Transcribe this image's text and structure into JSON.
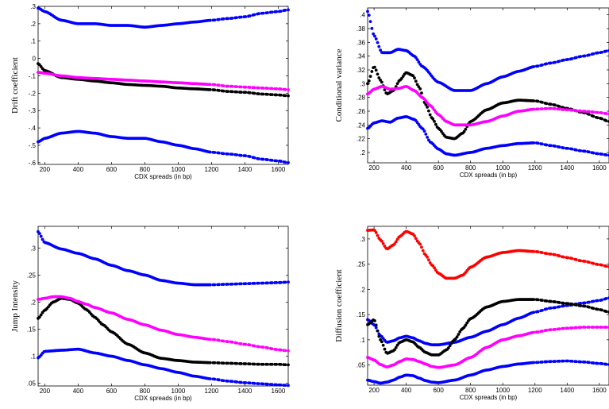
{
  "chart_data": [
    {
      "type": "scatter",
      "xlabel": "CDX spreads (in bp)",
      "ylabel": "Drift coefficient",
      "xlim": [
        160,
        1660
      ],
      "ylim": [
        -0.61,
        0.3
      ],
      "xticks": [
        200,
        400,
        600,
        800,
        1000,
        1200,
        1400,
        1600
      ],
      "yticks": [
        0.3,
        0.2,
        0.1,
        0,
        -0.1,
        -0.2,
        -0.3,
        -0.4,
        -0.5,
        -0.6
      ],
      "series": [
        {
          "color": "#0000ff",
          "x": [
            160,
            200,
            300,
            400,
            500,
            600,
            700,
            800,
            900,
            1000,
            1100,
            1200,
            1300,
            1400,
            1500,
            1600,
            1660
          ],
          "y": [
            0.29,
            0.27,
            0.22,
            0.2,
            0.2,
            0.19,
            0.19,
            0.18,
            0.19,
            0.2,
            0.21,
            0.22,
            0.23,
            0.24,
            0.26,
            0.27,
            0.28
          ]
        },
        {
          "color": "#000000",
          "x": [
            160,
            200,
            300,
            400,
            500,
            600,
            700,
            800,
            900,
            1000,
            1100,
            1200,
            1300,
            1400,
            1500,
            1600,
            1660
          ],
          "y": [
            -0.03,
            -0.07,
            -0.11,
            -0.12,
            -0.13,
            -0.14,
            -0.15,
            -0.155,
            -0.16,
            -0.17,
            -0.175,
            -0.18,
            -0.19,
            -0.195,
            -0.205,
            -0.21,
            -0.215
          ]
        },
        {
          "color": "#ff00ff",
          "x": [
            160,
            200,
            300,
            400,
            500,
            600,
            700,
            800,
            900,
            1000,
            1100,
            1200,
            1300,
            1400,
            1500,
            1600,
            1660
          ],
          "y": [
            -0.08,
            -0.085,
            -0.1,
            -0.11,
            -0.115,
            -0.12,
            -0.125,
            -0.13,
            -0.135,
            -0.14,
            -0.145,
            -0.15,
            -0.16,
            -0.165,
            -0.17,
            -0.175,
            -0.18
          ]
        },
        {
          "color": "#0000ff",
          "x": [
            160,
            200,
            300,
            400,
            500,
            600,
            700,
            800,
            900,
            1000,
            1100,
            1200,
            1300,
            1400,
            1500,
            1600,
            1660
          ],
          "y": [
            -0.48,
            -0.46,
            -0.43,
            -0.42,
            -0.43,
            -0.45,
            -0.46,
            -0.46,
            -0.48,
            -0.5,
            -0.52,
            -0.54,
            -0.55,
            -0.56,
            -0.58,
            -0.59,
            -0.6
          ]
        }
      ]
    },
    {
      "type": "scatter",
      "xlabel": "CDX spreads (in bp)",
      "ylabel": "Conditional variance",
      "xlim": [
        160,
        1660
      ],
      "ylim": [
        0.185,
        0.41
      ],
      "xticks": [
        200,
        400,
        600,
        800,
        1000,
        1200,
        1400,
        1600
      ],
      "yticks": [
        0.4,
        0.38,
        0.36,
        0.34,
        0.32,
        0.3,
        0.28,
        0.26,
        0.24,
        0.22,
        0.2
      ],
      "series": [
        {
          "color": "#0000ff",
          "x": [
            160,
            200,
            250,
            300,
            350,
            400,
            450,
            500,
            600,
            700,
            800,
            900,
            1000,
            1100,
            1200,
            1300,
            1400,
            1500,
            1600,
            1660
          ],
          "y": [
            0.405,
            0.37,
            0.345,
            0.345,
            0.35,
            0.348,
            0.34,
            0.325,
            0.302,
            0.29,
            0.29,
            0.3,
            0.31,
            0.318,
            0.325,
            0.33,
            0.335,
            0.34,
            0.345,
            0.348
          ]
        },
        {
          "color": "#000000",
          "x": [
            160,
            200,
            240,
            280,
            320,
            360,
            400,
            440,
            480,
            520,
            560,
            600,
            650,
            700,
            750,
            800,
            900,
            1000,
            1100,
            1200,
            1300,
            1400,
            1500,
            1600,
            1660
          ],
          "y": [
            0.3,
            0.325,
            0.305,
            0.285,
            0.29,
            0.305,
            0.316,
            0.312,
            0.295,
            0.27,
            0.25,
            0.235,
            0.222,
            0.22,
            0.228,
            0.245,
            0.262,
            0.272,
            0.276,
            0.275,
            0.27,
            0.264,
            0.258,
            0.25,
            0.245
          ]
        },
        {
          "color": "#ff00ff",
          "x": [
            160,
            200,
            250,
            300,
            350,
            400,
            450,
            500,
            550,
            600,
            650,
            700,
            800,
            900,
            1000,
            1100,
            1200,
            1300,
            1400,
            1500,
            1600,
            1660
          ],
          "y": [
            0.285,
            0.292,
            0.296,
            0.292,
            0.293,
            0.296,
            0.29,
            0.28,
            0.268,
            0.255,
            0.245,
            0.24,
            0.24,
            0.245,
            0.253,
            0.26,
            0.263,
            0.264,
            0.262,
            0.26,
            0.258,
            0.256
          ]
        },
        {
          "color": "#0000ff",
          "x": [
            160,
            200,
            250,
            300,
            350,
            400,
            450,
            500,
            550,
            600,
            650,
            700,
            800,
            900,
            1000,
            1100,
            1200,
            1300,
            1400,
            1500,
            1600,
            1660
          ],
          "y": [
            0.235,
            0.243,
            0.246,
            0.244,
            0.25,
            0.252,
            0.248,
            0.235,
            0.215,
            0.205,
            0.198,
            0.196,
            0.2,
            0.206,
            0.21,
            0.213,
            0.214,
            0.21,
            0.206,
            0.202,
            0.198,
            0.196
          ]
        }
      ]
    },
    {
      "type": "scatter",
      "xlabel": "CDX spreads (in bp)",
      "ylabel": "Jump Intensity",
      "xlim": [
        160,
        1660
      ],
      "ylim": [
        0.045,
        0.34
      ],
      "xticks": [
        200,
        400,
        600,
        800,
        1000,
        1200,
        1400,
        1600
      ],
      "yticks": [
        0.3,
        0.25,
        0.2,
        0.15,
        0.1,
        0.05
      ],
      "series": [
        {
          "color": "#0000ff",
          "x": [
            160,
            200,
            300,
            400,
            500,
            600,
            700,
            800,
            900,
            1000,
            1100,
            1200,
            1300,
            1400,
            1500,
            1600,
            1660
          ],
          "y": [
            0.33,
            0.31,
            0.298,
            0.29,
            0.28,
            0.268,
            0.258,
            0.25,
            0.24,
            0.235,
            0.232,
            0.232,
            0.233,
            0.234,
            0.235,
            0.236,
            0.237
          ]
        },
        {
          "color": "#000000",
          "x": [
            160,
            200,
            250,
            300,
            350,
            400,
            450,
            500,
            550,
            600,
            700,
            800,
            900,
            1000,
            1100,
            1200,
            1300,
            1400,
            1500,
            1600,
            1660
          ],
          "y": [
            0.17,
            0.185,
            0.2,
            0.207,
            0.205,
            0.198,
            0.186,
            0.172,
            0.158,
            0.145,
            0.122,
            0.106,
            0.096,
            0.092,
            0.089,
            0.088,
            0.087,
            0.086,
            0.085,
            0.085,
            0.084
          ]
        },
        {
          "color": "#ff00ff",
          "x": [
            160,
            200,
            250,
            300,
            350,
            400,
            450,
            500,
            600,
            700,
            800,
            900,
            1000,
            1100,
            1200,
            1300,
            1400,
            1500,
            1600,
            1660
          ],
          "y": [
            0.205,
            0.207,
            0.21,
            0.21,
            0.207,
            0.201,
            0.196,
            0.19,
            0.18,
            0.168,
            0.158,
            0.148,
            0.14,
            0.135,
            0.131,
            0.127,
            0.122,
            0.117,
            0.112,
            0.11
          ]
        },
        {
          "color": "#0000ff",
          "x": [
            160,
            200,
            300,
            400,
            500,
            600,
            700,
            800,
            900,
            1000,
            1100,
            1200,
            1300,
            1400,
            1500,
            1600,
            1660
          ],
          "y": [
            0.097,
            0.109,
            0.111,
            0.113,
            0.106,
            0.1,
            0.092,
            0.084,
            0.077,
            0.07,
            0.063,
            0.058,
            0.054,
            0.051,
            0.049,
            0.047,
            0.046
          ]
        }
      ]
    },
    {
      "type": "scatter",
      "xlabel": "CDX spreads (in bp)",
      "ylabel": "Diffusion coefficient",
      "xlim": [
        160,
        1660
      ],
      "ylim": [
        0.01,
        0.325
      ],
      "xticks": [
        200,
        400,
        600,
        800,
        1000,
        1200,
        1400,
        1600
      ],
      "yticks": [
        0.3,
        0.25,
        0.2,
        0.15,
        0.1,
        0.05
      ],
      "series": [
        {
          "color": "#ff0000",
          "x": [
            160,
            200,
            240,
            280,
            320,
            360,
            400,
            440,
            480,
            520,
            560,
            600,
            650,
            700,
            750,
            800,
            900,
            1000,
            1100,
            1200,
            1300,
            1400,
            1500,
            1600,
            1660
          ],
          "y": [
            0.317,
            0.318,
            0.298,
            0.28,
            0.288,
            0.305,
            0.315,
            0.31,
            0.292,
            0.268,
            0.248,
            0.232,
            0.222,
            0.222,
            0.228,
            0.244,
            0.264,
            0.273,
            0.277,
            0.275,
            0.27,
            0.263,
            0.256,
            0.249,
            0.245
          ]
        },
        {
          "color": "#0000ff",
          "x": [
            160,
            200,
            240,
            280,
            320,
            360,
            400,
            440,
            480,
            520,
            560,
            600,
            700,
            800,
            900,
            1000,
            1100,
            1200,
            1300,
            1400,
            1500,
            1600,
            1660
          ],
          "y": [
            0.14,
            0.13,
            0.108,
            0.095,
            0.098,
            0.104,
            0.107,
            0.104,
            0.098,
            0.093,
            0.09,
            0.09,
            0.095,
            0.105,
            0.117,
            0.13,
            0.143,
            0.155,
            0.163,
            0.168,
            0.173,
            0.178,
            0.183
          ]
        },
        {
          "color": "#000000",
          "x": [
            160,
            200,
            240,
            280,
            320,
            360,
            400,
            440,
            480,
            520,
            560,
            600,
            650,
            700,
            750,
            800,
            900,
            1000,
            1100,
            1200,
            1300,
            1400,
            1500,
            1600,
            1660
          ],
          "y": [
            0.13,
            0.14,
            0.1,
            0.073,
            0.078,
            0.095,
            0.1,
            0.096,
            0.085,
            0.075,
            0.07,
            0.07,
            0.08,
            0.1,
            0.122,
            0.142,
            0.165,
            0.176,
            0.18,
            0.18,
            0.176,
            0.172,
            0.167,
            0.16,
            0.155
          ]
        },
        {
          "color": "#ff00ff",
          "x": [
            160,
            200,
            240,
            280,
            320,
            360,
            400,
            440,
            480,
            520,
            560,
            600,
            700,
            800,
            900,
            1000,
            1100,
            1200,
            1300,
            1400,
            1500,
            1600,
            1660
          ],
          "y": [
            0.065,
            0.06,
            0.051,
            0.046,
            0.05,
            0.057,
            0.062,
            0.061,
            0.057,
            0.052,
            0.047,
            0.045,
            0.05,
            0.065,
            0.085,
            0.1,
            0.108,
            0.115,
            0.12,
            0.123,
            0.125,
            0.125,
            0.125
          ]
        },
        {
          "color": "#0000ff",
          "x": [
            160,
            200,
            240,
            280,
            320,
            360,
            400,
            440,
            480,
            520,
            560,
            600,
            700,
            800,
            900,
            1000,
            1100,
            1200,
            1300,
            1400,
            1500,
            1600,
            1660
          ],
          "y": [
            0.02,
            0.017,
            0.014,
            0.016,
            0.02,
            0.026,
            0.03,
            0.029,
            0.024,
            0.019,
            0.016,
            0.015,
            0.02,
            0.03,
            0.04,
            0.047,
            0.052,
            0.055,
            0.057,
            0.058,
            0.056,
            0.053,
            0.051
          ]
        }
      ]
    }
  ]
}
